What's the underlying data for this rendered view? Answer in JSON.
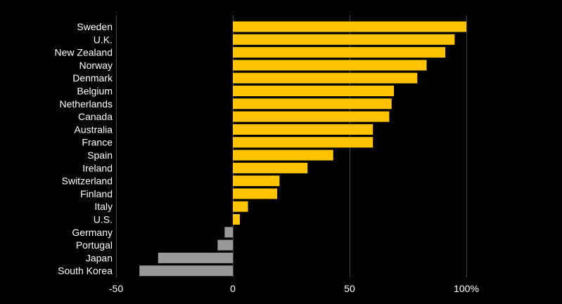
{
  "chart_data": {
    "type": "bar",
    "orientation": "horizontal",
    "title": "",
    "xlabel": "",
    "ylabel": "",
    "categories": [
      "Sweden",
      "U.K.",
      "New Zealand",
      "Norway",
      "Denmark",
      "Belgium",
      "Netherlands",
      "Canada",
      "Australia",
      "France",
      "Spain",
      "Ireland",
      "Switzerland",
      "Finland",
      "Italy",
      "U.S.",
      "Germany",
      "Portugal",
      "Japan",
      "South Korea"
    ],
    "values": [
      100,
      95,
      91,
      83,
      79,
      69,
      68,
      67,
      60,
      60,
      43,
      32,
      20,
      19,
      6.5,
      3,
      -3.5,
      -6.5,
      -32,
      -40
    ],
    "xlim": [
      -50,
      100
    ],
    "xticks": [
      -50,
      0,
      50,
      100
    ],
    "xtick_labels": [
      "-50",
      "0",
      "50",
      "100%"
    ],
    "grid": true,
    "legend": "none",
    "colors": {
      "positive": "#ffc300",
      "negative": "#999999",
      "gridline": "#444444",
      "text": "#ffffff",
      "background": "#000000"
    }
  }
}
